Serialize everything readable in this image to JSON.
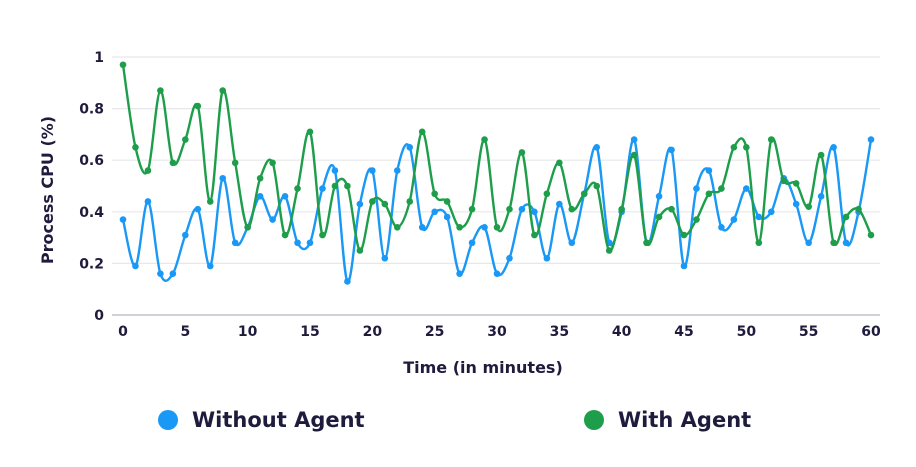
{
  "chart_data": {
    "type": "line",
    "xlabel": "Time (in minutes)",
    "ylabel": "Process CPU (%)",
    "xlim": [
      0,
      60
    ],
    "ylim": [
      0,
      1
    ],
    "x_ticks": [
      "0",
      "5",
      "10",
      "15",
      "20",
      "25",
      "30",
      "35",
      "40",
      "45",
      "50",
      "55",
      "60"
    ],
    "y_ticks": [
      "0",
      "0.2",
      "0.4",
      "0.6",
      "0.8",
      "1"
    ],
    "grid": "horizontal",
    "legend_position": "bottom",
    "series": [
      {
        "name": "Without Agent",
        "color": "#1a98f5",
        "values": [
          0.37,
          0.19,
          0.44,
          0.16,
          0.16,
          0.31,
          0.41,
          0.19,
          0.53,
          0.28,
          0.34,
          0.46,
          0.37,
          0.46,
          0.28,
          0.28,
          0.49,
          0.56,
          0.13,
          0.43,
          0.56,
          0.22,
          0.56,
          0.65,
          0.34,
          0.4,
          0.38,
          0.16,
          0.28,
          0.34,
          0.16,
          0.22,
          0.41,
          0.4,
          0.22,
          0.43,
          0.28,
          0.47,
          0.65,
          0.28,
          0.4,
          0.68,
          0.28,
          0.46,
          0.64,
          0.19,
          0.49,
          0.56,
          0.34,
          0.37,
          0.49,
          0.38,
          0.4,
          0.53,
          0.43,
          0.28,
          0.46,
          0.65,
          0.28,
          0.4,
          0.68
        ]
      },
      {
        "name": "With Agent",
        "color": "#1e9e4a",
        "values": [
          0.97,
          0.65,
          0.56,
          0.87,
          0.59,
          0.68,
          0.81,
          0.44,
          0.87,
          0.59,
          0.34,
          0.53,
          0.59,
          0.31,
          0.49,
          0.71,
          0.31,
          0.5,
          0.5,
          0.25,
          0.44,
          0.43,
          0.34,
          0.44,
          0.71,
          0.47,
          0.44,
          0.34,
          0.41,
          0.68,
          0.34,
          0.41,
          0.63,
          0.31,
          0.47,
          0.59,
          0.41,
          0.47,
          0.5,
          0.25,
          0.41,
          0.62,
          0.28,
          0.38,
          0.41,
          0.31,
          0.37,
          0.47,
          0.49,
          0.65,
          0.65,
          0.28,
          0.68,
          0.52,
          0.51,
          0.42,
          0.62,
          0.28,
          0.38,
          0.41,
          0.31
        ]
      }
    ]
  }
}
